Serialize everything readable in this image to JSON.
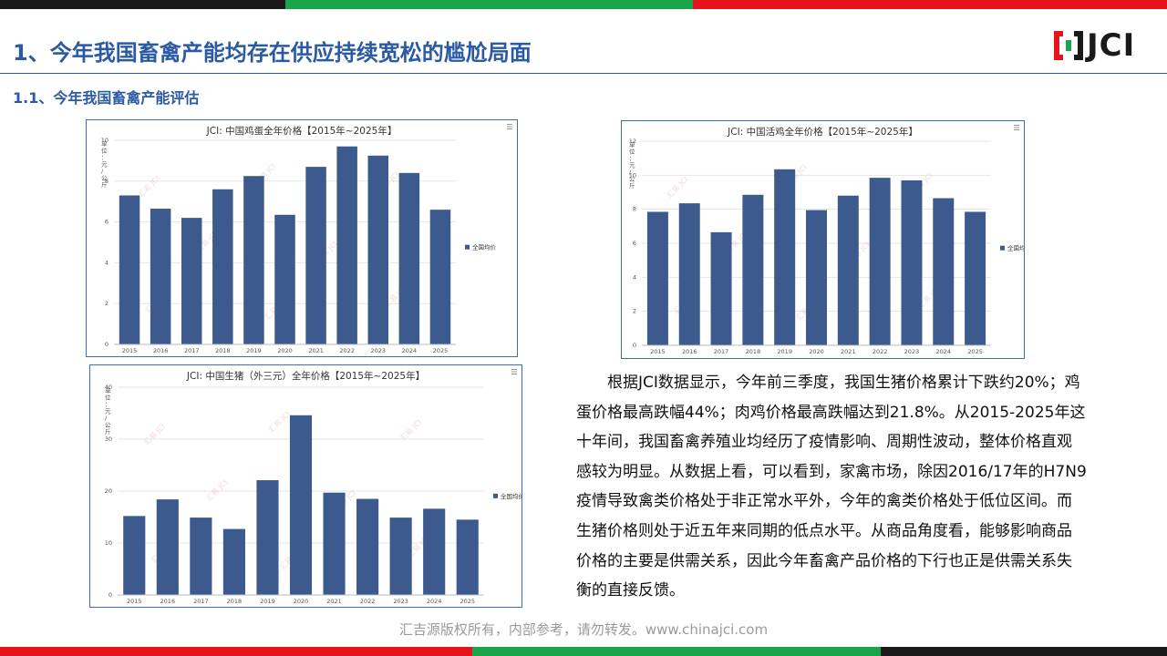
{
  "page": {
    "title": "1、今年我国畜禽产能均存在供应持续宽松的尴尬局面",
    "subtitle": "1.1、今年我国畜禽产能评估",
    "logo_text": "JCI",
    "body": "根据JCI数据显示，今年前三季度，我国生猪价格累计下跌约20%；鸡蛋价格最高跌幅44%；肉鸡价格最高跌幅达到21.8%。从2015-2025年这十年间，我国畜禽养殖业均经历了疫情影响、周期性波动，整体价格直观感较为明显。从数据上看，可以看到，家禽市场，除因2016/17年的H7N9疫情导致禽类价格处于非正常水平外，今年的禽类价格处于低位区间。而生猪价格则处于近五年来同期的低点水平。从商品角度看，能够影响商品价格的主要是供需关系，因此今年畜禽产品价格的下行也正是供需关系失衡的直接反馈。",
    "footer": "汇吉源版权所有，内部参考，请勿转发。www.chinajci.com",
    "watermark": "汇易 JCI",
    "colors": {
      "accent": "#2b5aa5",
      "bar": "#3d5a8f",
      "red": "#e5141c",
      "green": "#1aa54a"
    }
  },
  "chart_data": [
    {
      "id": "egg",
      "type": "bar",
      "title": "JCI: 中国鸡蛋全年价格【2015年~2025年】",
      "ylabel": "单位：元/公斤",
      "legend": "全国均价",
      "categories": [
        "2015",
        "2016",
        "2017",
        "2018",
        "2019",
        "2020",
        "2021",
        "2022",
        "2023",
        "2024",
        "2025"
      ],
      "values": [
        7.3,
        6.65,
        6.2,
        7.6,
        8.25,
        6.35,
        8.7,
        9.7,
        9.25,
        8.4,
        6.6
      ],
      "ylim": [
        0,
        10
      ],
      "yticks": [
        0,
        2,
        4,
        6,
        8,
        10
      ]
    },
    {
      "id": "chicken",
      "type": "bar",
      "title": "JCI: 中国活鸡全年价格【2015年~2025年】",
      "ylabel": "单位：元/公斤",
      "legend": "全国均价",
      "categories": [
        "2015",
        "2016",
        "2017",
        "2018",
        "2019",
        "2020",
        "2021",
        "2022",
        "2023",
        "2024",
        "2025"
      ],
      "values": [
        7.85,
        8.35,
        6.65,
        8.85,
        10.35,
        7.95,
        8.8,
        9.85,
        9.7,
        8.65,
        7.85
      ],
      "ylim": [
        0,
        12
      ],
      "yticks": [
        0,
        2,
        4,
        6,
        8,
        10,
        12
      ]
    },
    {
      "id": "hog",
      "type": "bar",
      "title": "JCI: 中国生猪（外三元）全年价格【2015年~2025年】",
      "ylabel": "单位：元/公斤",
      "legend": "全国均价",
      "categories": [
        "2015",
        "2016",
        "2017",
        "2018",
        "2019",
        "2020",
        "2021",
        "2022",
        "2023",
        "2024",
        "2025"
      ],
      "values": [
        15.2,
        18.4,
        14.9,
        12.7,
        22.1,
        34.6,
        19.7,
        18.5,
        14.9,
        16.6,
        14.5
      ],
      "ylim": [
        0,
        40
      ],
      "yticks": [
        0,
        10,
        20,
        30,
        40
      ]
    }
  ]
}
